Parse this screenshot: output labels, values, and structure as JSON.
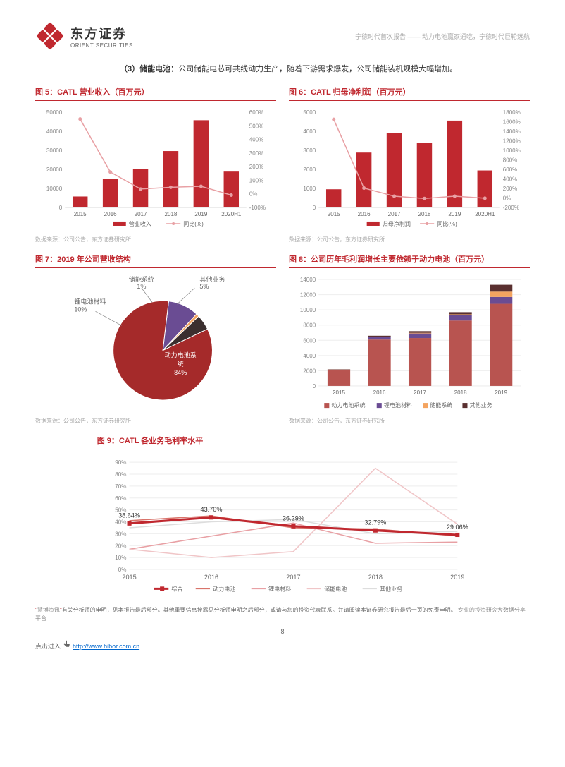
{
  "header": {
    "logo_cn": "东方证券",
    "logo_en": "ORIENT SECURITIES",
    "right_text": "宁德时代首次报告 —— 动力电池赢家通吃，宁德时代巨轮远航"
  },
  "intro": {
    "label": "（3）储能电池：",
    "text": "公司储能电芯可共线动力生产，随着下游需求爆发，公司储能装机规模大幅增加。"
  },
  "chart5": {
    "title": "图 5：CATL 营业收入（百万元）",
    "type": "bar+line",
    "categories": [
      "2015",
      "2016",
      "2017",
      "2018",
      "2019",
      "2020H1"
    ],
    "bar_values": [
      5700,
      14800,
      20000,
      29600,
      45800,
      18800
    ],
    "line_values": [
      550,
      160,
      35,
      48,
      55,
      -10
    ],
    "bar_color": "#c0282f",
    "line_color": "#e8a0a4",
    "ylim_left": [
      0,
      50000
    ],
    "ytick_left": [
      0,
      10000,
      20000,
      30000,
      40000,
      50000
    ],
    "ylim_right": [
      -100,
      600
    ],
    "ytick_right": [
      -100,
      0,
      100,
      200,
      300,
      400,
      500,
      600
    ],
    "legend": [
      "营业收入",
      "同比(%)"
    ],
    "source": "数据来源：公司公告，东方证券研究所"
  },
  "chart6": {
    "title": "图 6：CATL 归母净利润（百万元）",
    "type": "bar+line",
    "categories": [
      "2015",
      "2016",
      "2017",
      "2018",
      "2019",
      "2020H1"
    ],
    "bar_values": [
      950,
      2880,
      3900,
      3390,
      4560,
      1940
    ],
    "line_values": [
      1650,
      205,
      35,
      -13,
      35,
      -8
    ],
    "bar_color": "#c0282f",
    "line_color": "#e8a0a4",
    "ylim_left": [
      0,
      5000
    ],
    "ytick_left": [
      0,
      1000,
      2000,
      3000,
      4000,
      5000
    ],
    "ylim_right": [
      -200,
      1800
    ],
    "ytick_right": [
      -200,
      0,
      200,
      400,
      600,
      800,
      1000,
      1200,
      1400,
      1600,
      1800
    ],
    "legend": [
      "归母净利润",
      "同比(%)"
    ],
    "source": "数据来源：公司公告，东方证券研究所"
  },
  "chart7": {
    "title": "图 7：2019 年公司营收结构",
    "type": "pie",
    "slices": [
      {
        "label": "动力电池系统",
        "pct": 84,
        "color": "#a52a2a"
      },
      {
        "label": "锂电池材料",
        "pct": 10,
        "color": "#6a4c93"
      },
      {
        "label": "储能系统",
        "pct": 1,
        "color": "#f4a460"
      },
      {
        "label": "其他业务",
        "pct": 5,
        "color": "#3b2f2f"
      }
    ],
    "labels": {
      "power": "动力电池系统\n84%",
      "material": "锂电池材料\n10%",
      "storage": "储能系统\n1%",
      "other": "其他业务\n5%"
    },
    "source": "数据来源：公司公告，东方证券研究所"
  },
  "chart8": {
    "title": "图 8：公司历年毛利润增长主要依赖于动力电池（百万元）",
    "type": "stacked-bar",
    "categories": [
      "2015",
      "2016",
      "2017",
      "2018",
      "2019"
    ],
    "series": [
      {
        "name": "动力电池系统",
        "color": "#b85450",
        "values": [
          2100,
          6100,
          6300,
          8600,
          10800
        ]
      },
      {
        "name": "锂电池材料",
        "color": "#6a4c93",
        "values": [
          50,
          300,
          600,
          700,
          900
        ]
      },
      {
        "name": "储能系统",
        "color": "#f4a460",
        "values": [
          20,
          50,
          80,
          120,
          700
        ]
      },
      {
        "name": "其他业务",
        "color": "#5a3030",
        "values": [
          30,
          150,
          220,
          280,
          900
        ]
      }
    ],
    "ylim": [
      0,
      14000
    ],
    "ytick": [
      0,
      2000,
      4000,
      6000,
      8000,
      10000,
      12000,
      14000
    ],
    "legend": [
      "动力电池系统",
      "锂电池材料",
      "储能系统",
      "其他业务"
    ],
    "source": "数据来源：公司公告，东方证券研究所"
  },
  "chart9": {
    "title": "图 9：CATL 各业务毛利率水平",
    "type": "line",
    "categories": [
      "2015",
      "2016",
      "2017",
      "2018",
      "2019"
    ],
    "series": [
      {
        "name": "综合",
        "color": "#c0282f",
        "values": [
          38.64,
          43.7,
          36.29,
          32.79,
          29.06
        ],
        "width": 3,
        "marker": "square"
      },
      {
        "name": "动力电池",
        "color": "#d9746b",
        "values": [
          41,
          45,
          35,
          34,
          28
        ],
        "width": 1.5
      },
      {
        "name": "锂电材料",
        "color": "#e8a0a4",
        "values": [
          17,
          28,
          39,
          22,
          23
        ],
        "width": 1.5
      },
      {
        "name": "储能电池",
        "color": "#f0c5c7",
        "values": [
          17,
          10,
          15,
          85,
          38
        ],
        "width": 1.5
      },
      {
        "name": "其他业务",
        "color": "#ddd",
        "values": [
          35,
          40,
          42,
          30,
          32
        ],
        "width": 1.5
      }
    ],
    "labels": [
      "38.64%",
      "43.70%",
      "36.29%",
      "32.79%",
      "29.06%"
    ],
    "ylim": [
      0,
      90
    ],
    "ytick": [
      0,
      10,
      20,
      30,
      40,
      50,
      60,
      70,
      80,
      90
    ],
    "legend": [
      "综合",
      "动力电池",
      "锂电材料",
      "储能电池",
      "其他业务"
    ]
  },
  "footer": {
    "q1": "\"",
    "hibo": "慧博资讯",
    "q2": "\"",
    "line1a": "有关分析师的申明，见本报告最后部分。",
    "line1b": "其他重要信息披露见分析师申明之后部分，或请与您的投资代表联系。并请阅读本证券研究报告最后一页的免责申明。",
    "platform": "专业的投资研究大数据分享平台",
    "click": "点击进入",
    "url_text": "http://www.hibor.com.cn",
    "page": "8"
  }
}
